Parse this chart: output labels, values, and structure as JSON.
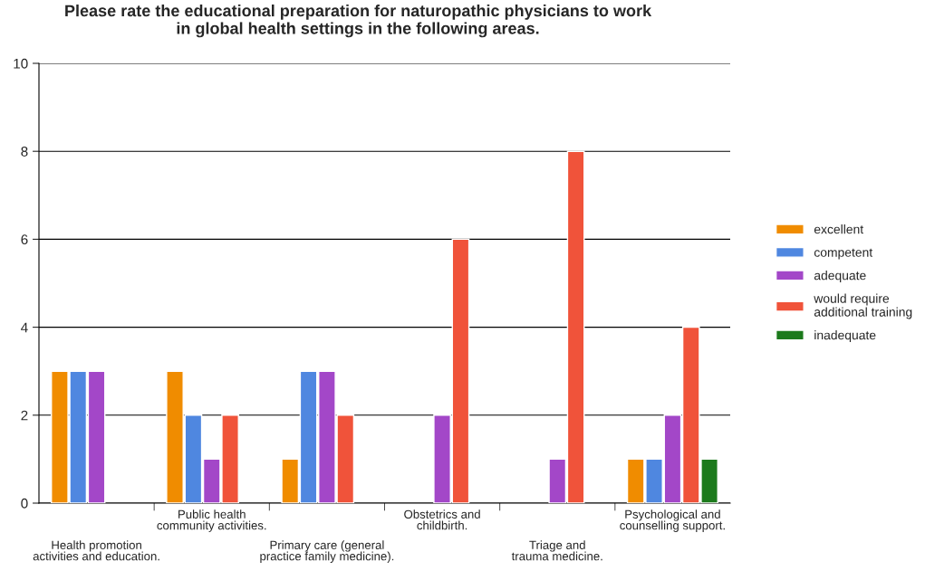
{
  "chart_data": {
    "type": "bar",
    "title": "Please rate the educational preparation for naturopathic physicians to work\nin global health settings in the following areas.",
    "categories": [
      "Health promotion\nactivities and education.",
      "Public health\ncommunity activities.",
      "Primary care (general\npractice family medicine).",
      "Obstetrics and\nchildbirth.",
      "Triage and\ntrauma medicine.",
      "Psychological and\ncounselling support."
    ],
    "series": [
      {
        "name": "excellent",
        "color": "#f08c00",
        "values": [
          3,
          3,
          1,
          null,
          null,
          1
        ]
      },
      {
        "name": "competent",
        "color": "#4f87e0",
        "values": [
          3,
          2,
          3,
          null,
          null,
          1
        ]
      },
      {
        "name": "adequate",
        "color": "#a347c8",
        "values": [
          3,
          1,
          3,
          2,
          1,
          2
        ]
      },
      {
        "name": "would require\nadditional training",
        "color": "#f0533a",
        "values": [
          null,
          2,
          2,
          6,
          8,
          4
        ]
      },
      {
        "name": "inadequate",
        "color": "#1c7a1c",
        "values": [
          null,
          null,
          null,
          null,
          null,
          1
        ]
      }
    ],
    "ylim": [
      0,
      10
    ],
    "yticks": [
      0,
      2,
      4,
      6,
      8,
      10
    ],
    "grid": "y",
    "legend": "right"
  }
}
